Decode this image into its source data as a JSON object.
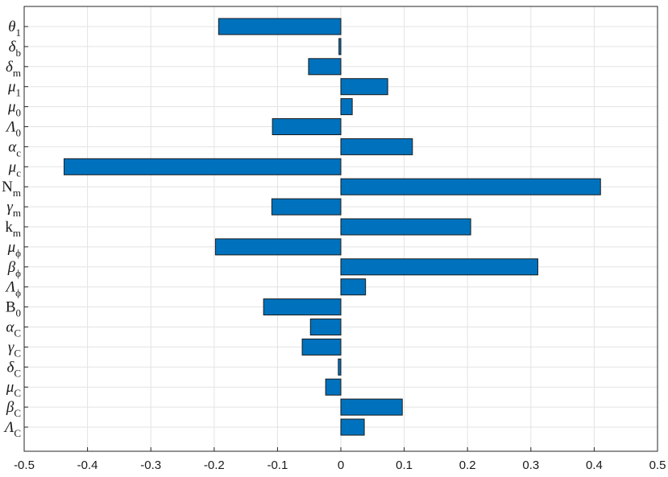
{
  "chart_data": {
    "type": "bar",
    "orientation": "horizontal",
    "title": "",
    "xlabel": "",
    "ylabel": "",
    "xlim": [
      -0.5,
      0.5
    ],
    "xticks": [
      -0.5,
      -0.4,
      -0.3,
      -0.2,
      -0.1,
      0,
      0.1,
      0.2,
      0.3,
      0.4,
      0.5
    ],
    "xtick_labels": [
      "-0.5",
      "-0.4",
      "-0.3",
      "-0.2",
      "-0.1",
      "0",
      "0.1",
      "0.2",
      "0.3",
      "0.4",
      "0.5"
    ],
    "grid": true,
    "legend": "none",
    "bar_color": "#0072BD",
    "bar_edge_color": "#1a1a1a",
    "categories": [
      {
        "main": "θ",
        "sub": "1",
        "greek": true
      },
      {
        "main": "δ",
        "sub": "b",
        "greek": true
      },
      {
        "main": "δ",
        "sub": "m",
        "greek": true
      },
      {
        "main": "μ",
        "sub": "1",
        "greek": true
      },
      {
        "main": "μ",
        "sub": "0",
        "greek": true
      },
      {
        "main": "Λ",
        "sub": "0",
        "greek": true
      },
      {
        "main": "α",
        "sub": "c",
        "greek": true
      },
      {
        "main": "μ",
        "sub": "c",
        "greek": true
      },
      {
        "main": "N",
        "sub": "m",
        "greek": false
      },
      {
        "main": "γ",
        "sub": "m",
        "greek": true
      },
      {
        "main": "k",
        "sub": "m",
        "greek": false
      },
      {
        "main": "μ",
        "sub": "ϕ",
        "greek": true
      },
      {
        "main": "β",
        "sub": "ϕ",
        "greek": true
      },
      {
        "main": "Λ",
        "sub": "ϕ",
        "greek": true
      },
      {
        "main": "B",
        "sub": "0",
        "greek": false
      },
      {
        "main": "α",
        "sub": "C",
        "greek": true
      },
      {
        "main": "γ",
        "sub": "C",
        "greek": true
      },
      {
        "main": "δ",
        "sub": "C",
        "greek": true
      },
      {
        "main": "μ",
        "sub": "C",
        "greek": true
      },
      {
        "main": "β",
        "sub": "C",
        "greek": true
      },
      {
        "main": "Λ",
        "sub": "C",
        "greek": true
      }
    ],
    "values": [
      -0.193,
      -0.003,
      -0.051,
      0.074,
      0.018,
      -0.108,
      0.113,
      -0.437,
      0.41,
      -0.109,
      0.205,
      -0.198,
      0.311,
      0.039,
      -0.122,
      -0.048,
      -0.061,
      -0.004,
      -0.024,
      0.097,
      0.037
    ]
  }
}
